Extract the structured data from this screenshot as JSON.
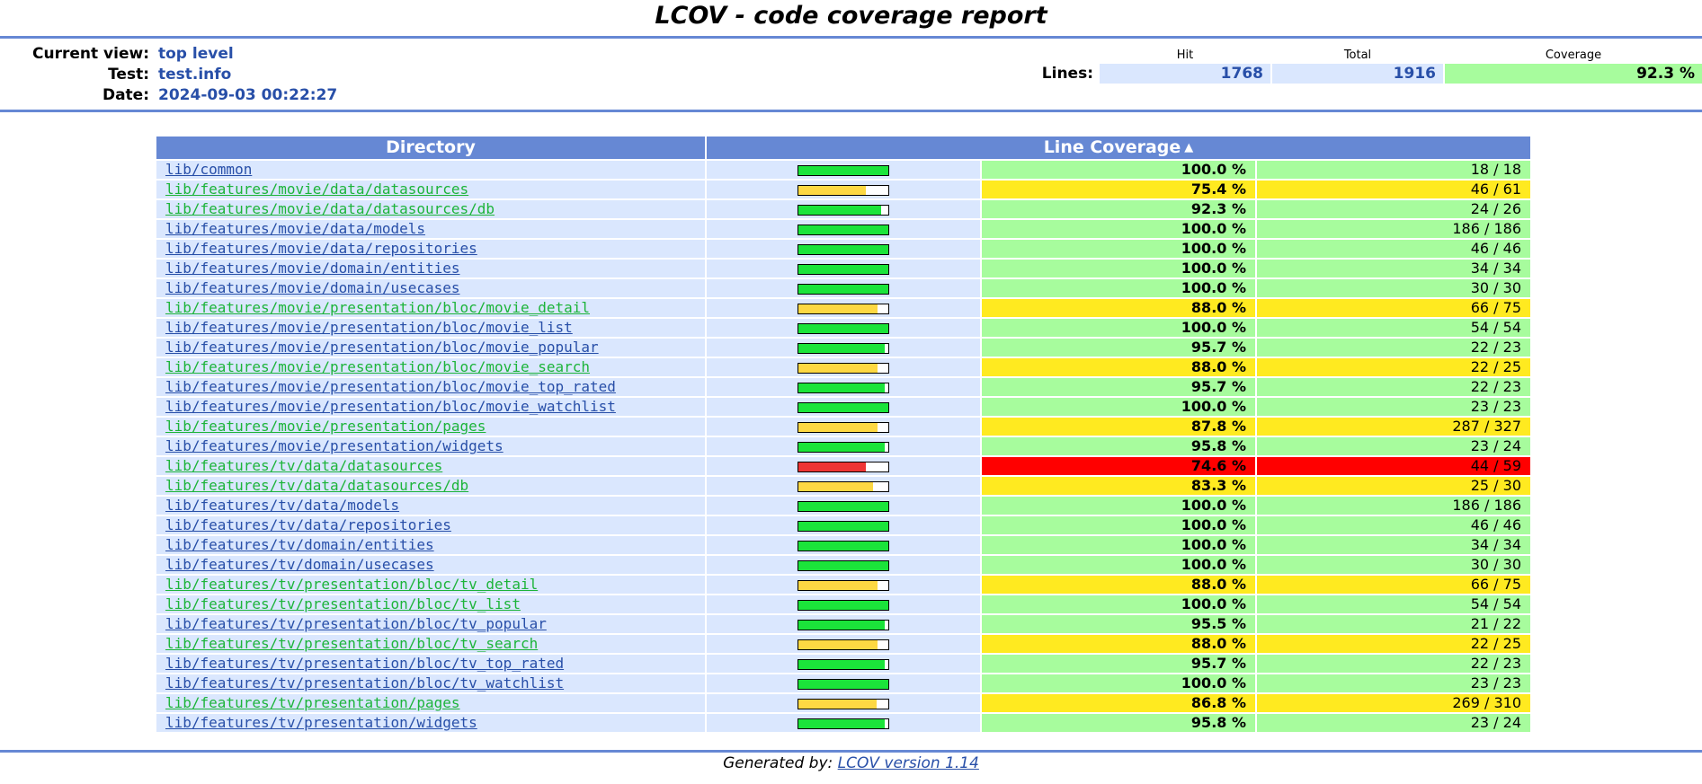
{
  "page": {
    "title": "LCOV - code coverage report"
  },
  "header": {
    "current_view_label": "Current view:",
    "current_view_value": "top level",
    "test_label": "Test:",
    "test_value": "test.info",
    "date_label": "Date:",
    "date_value": "2024-09-03 00:22:27",
    "hit_label": "Hit",
    "total_label": "Total",
    "coverage_label": "Coverage",
    "lines_label": "Lines:",
    "lines_hit": "1768",
    "lines_total": "1916",
    "lines_coverage": "92.3 %"
  },
  "table": {
    "col_directory": "Directory",
    "col_line_coverage": "Line Coverage",
    "sort_icon": "sort-arrows-icon",
    "rows": [
      {
        "dir": "lib/common",
        "pct": "100.0 %",
        "ratio": "18 / 18",
        "level": "hi",
        "fill": 1.0
      },
      {
        "dir": "lib/features/movie/data/datasources",
        "pct": "75.4 %",
        "ratio": "46 / 61",
        "level": "med",
        "fill": 0.754
      },
      {
        "dir": "lib/features/movie/data/datasources/db",
        "pct": "92.3 %",
        "ratio": "24 / 26",
        "level": "hi",
        "fill": 0.923
      },
      {
        "dir": "lib/features/movie/data/models",
        "pct": "100.0 %",
        "ratio": "186 / 186",
        "level": "hi",
        "fill": 1.0
      },
      {
        "dir": "lib/features/movie/data/repositories",
        "pct": "100.0 %",
        "ratio": "46 / 46",
        "level": "hi",
        "fill": 1.0
      },
      {
        "dir": "lib/features/movie/domain/entities",
        "pct": "100.0 %",
        "ratio": "34 / 34",
        "level": "hi",
        "fill": 1.0
      },
      {
        "dir": "lib/features/movie/domain/usecases",
        "pct": "100.0 %",
        "ratio": "30 / 30",
        "level": "hi",
        "fill": 1.0
      },
      {
        "dir": "lib/features/movie/presentation/bloc/movie_detail",
        "pct": "88.0 %",
        "ratio": "66 / 75",
        "level": "med",
        "fill": 0.88
      },
      {
        "dir": "lib/features/movie/presentation/bloc/movie_list",
        "pct": "100.0 %",
        "ratio": "54 / 54",
        "level": "hi",
        "fill": 1.0
      },
      {
        "dir": "lib/features/movie/presentation/bloc/movie_popular",
        "pct": "95.7 %",
        "ratio": "22 / 23",
        "level": "hi",
        "fill": 0.957
      },
      {
        "dir": "lib/features/movie/presentation/bloc/movie_search",
        "pct": "88.0 %",
        "ratio": "22 / 25",
        "level": "med",
        "fill": 0.88
      },
      {
        "dir": "lib/features/movie/presentation/bloc/movie_top_rated",
        "pct": "95.7 %",
        "ratio": "22 / 23",
        "level": "hi",
        "fill": 0.957
      },
      {
        "dir": "lib/features/movie/presentation/bloc/movie_watchlist",
        "pct": "100.0 %",
        "ratio": "23 / 23",
        "level": "hi",
        "fill": 1.0
      },
      {
        "dir": "lib/features/movie/presentation/pages",
        "pct": "87.8 %",
        "ratio": "287 / 327",
        "level": "med",
        "fill": 0.878
      },
      {
        "dir": "lib/features/movie/presentation/widgets",
        "pct": "95.8 %",
        "ratio": "23 / 24",
        "level": "hi",
        "fill": 0.958
      },
      {
        "dir": "lib/features/tv/data/datasources",
        "pct": "74.6 %",
        "ratio": "44 / 59",
        "level": "lo",
        "fill": 0.746
      },
      {
        "dir": "lib/features/tv/data/datasources/db",
        "pct": "83.3 %",
        "ratio": "25 / 30",
        "level": "med",
        "fill": 0.833
      },
      {
        "dir": "lib/features/tv/data/models",
        "pct": "100.0 %",
        "ratio": "186 / 186",
        "level": "hi",
        "fill": 1.0
      },
      {
        "dir": "lib/features/tv/data/repositories",
        "pct": "100.0 %",
        "ratio": "46 / 46",
        "level": "hi",
        "fill": 1.0
      },
      {
        "dir": "lib/features/tv/domain/entities",
        "pct": "100.0 %",
        "ratio": "34 / 34",
        "level": "hi",
        "fill": 1.0
      },
      {
        "dir": "lib/features/tv/domain/usecases",
        "pct": "100.0 %",
        "ratio": "30 / 30",
        "level": "hi",
        "fill": 1.0
      },
      {
        "dir": "lib/features/tv/presentation/bloc/tv_detail",
        "pct": "88.0 %",
        "ratio": "66 / 75",
        "level": "med",
        "fill": 0.88
      },
      {
        "dir": "lib/features/tv/presentation/bloc/tv_list",
        "pct": "100.0 %",
        "ratio": "54 / 54",
        "level": "hi",
        "fill": 1.0
      },
      {
        "dir": "lib/features/tv/presentation/bloc/tv_popular",
        "pct": "95.5 %",
        "ratio": "21 / 22",
        "level": "hi",
        "fill": 0.955
      },
      {
        "dir": "lib/features/tv/presentation/bloc/tv_search",
        "pct": "88.0 %",
        "ratio": "22 / 25",
        "level": "med",
        "fill": 0.88
      },
      {
        "dir": "lib/features/tv/presentation/bloc/tv_top_rated",
        "pct": "95.7 %",
        "ratio": "22 / 23",
        "level": "hi",
        "fill": 0.957
      },
      {
        "dir": "lib/features/tv/presentation/bloc/tv_watchlist",
        "pct": "100.0 %",
        "ratio": "23 / 23",
        "level": "hi",
        "fill": 1.0
      },
      {
        "dir": "lib/features/tv/presentation/pages",
        "pct": "86.8 %",
        "ratio": "269 / 310",
        "level": "med",
        "fill": 0.868
      },
      {
        "dir": "lib/features/tv/presentation/widgets",
        "pct": "95.8 %",
        "ratio": "23 / 24",
        "level": "hi",
        "fill": 0.958
      }
    ]
  },
  "colors": {
    "hi_bg": "#a7fc9d",
    "med_bg": "#ffea20",
    "lo_bg": "#ff0000",
    "hi_bar": "#1be43a",
    "med_bar": "#fdd843",
    "lo_bar": "#ee3434",
    "visited_link": "#1db43a",
    "link": "#284fa8"
  },
  "footer": {
    "prefix": "Generated by: ",
    "link_text": "LCOV version 1.14"
  }
}
